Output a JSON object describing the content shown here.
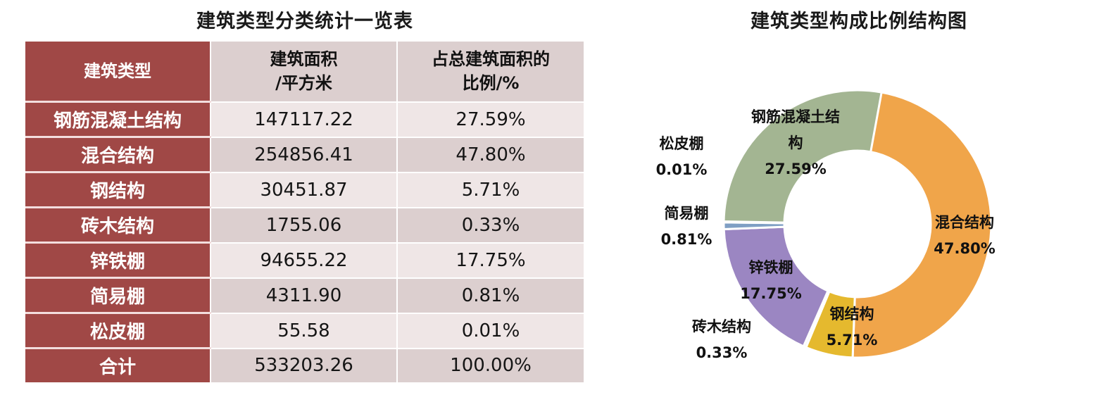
{
  "table": {
    "title": "建筑类型分类统计一览表",
    "headers": [
      "建筑类型",
      "建筑面积\n/平方米",
      "占总建筑面积的\n比例/%"
    ],
    "header_lines": {
      "col1": [
        "建筑类型"
      ],
      "col2": [
        "建筑面积",
        "/平方米"
      ],
      "col3": [
        "占总建筑面积的",
        "比例/%"
      ]
    },
    "rows": [
      {
        "type": "钢筋混凝土结构",
        "area": "147117.22",
        "ratio": "27.59%"
      },
      {
        "type": "混合结构",
        "area": "254856.41",
        "ratio": "47.80%"
      },
      {
        "type": "钢结构",
        "area": "30451.87",
        "ratio": "5.71%"
      },
      {
        "type": "砖木结构",
        "area": "1755.06",
        "ratio": "0.33%"
      },
      {
        "type": "锌铁棚",
        "area": "94655.22",
        "ratio": "17.75%"
      },
      {
        "type": "简易棚",
        "area": "4311.90",
        "ratio": "0.81%"
      },
      {
        "type": "松皮棚",
        "area": "55.58",
        "ratio": "0.01%"
      },
      {
        "type": "合计",
        "area": "533203.26",
        "ratio": "100.00%"
      }
    ]
  },
  "chart": {
    "title": "建筑类型构成比例结构图",
    "labels": {
      "rc": {
        "line1": "钢筋混凝土结",
        "line2": "构",
        "pct": "27.59%"
      },
      "mixed": {
        "line1": "混合结构",
        "pct": "47.80%"
      },
      "steel": {
        "line1": "钢结构",
        "pct": "5.71%"
      },
      "brick": {
        "line1": "砖木结构",
        "pct": "0.33%"
      },
      "zinc": {
        "line1": "锌铁棚",
        "pct": "17.75%"
      },
      "simple": {
        "line1": "简易棚",
        "pct": "0.81%"
      },
      "pine": {
        "line1": "松皮棚",
        "pct": "0.01%"
      }
    }
  },
  "colors": {
    "header_red": "#a04846",
    "row_light": "#efe6e6",
    "row_dark": "#dccfcf",
    "mixed": "#f0a54a",
    "steel": "#e5b92e",
    "brick": "#f2f2f2",
    "zinc": "#9b86c2",
    "simple": "#7f9fc4",
    "pine": "#c9d7e8",
    "rc": "#a3b592"
  },
  "chart_data": {
    "type": "pie",
    "subtype": "donut",
    "title": "建筑类型构成比例结构图",
    "categories": [
      "混合结构",
      "钢结构",
      "砖木结构",
      "锌铁棚",
      "简易棚",
      "松皮棚",
      "钢筋混凝土结构"
    ],
    "values": [
      47.8,
      5.71,
      0.33,
      17.75,
      0.81,
      0.01,
      27.59
    ],
    "areas_m2": [
      254856.41,
      30451.87,
      1755.06,
      94655.22,
      4311.9,
      55.58,
      147117.22
    ],
    "total_m2": 533203.26,
    "unit": "%",
    "start_angle_deg": 10,
    "direction": "clockwise",
    "legend": "none (data labels with category name and percentage)"
  }
}
